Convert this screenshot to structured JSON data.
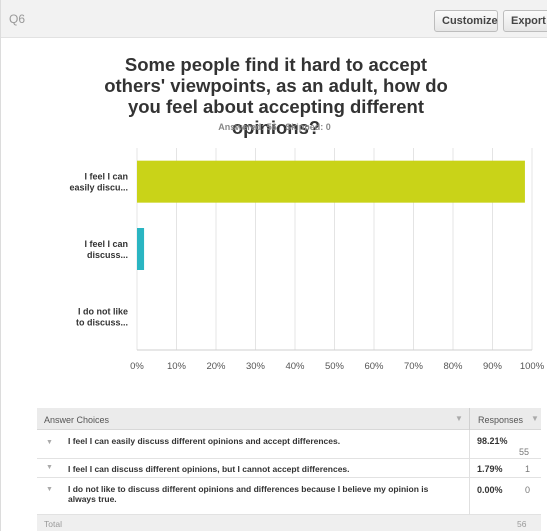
{
  "header": {
    "question_id": "Q6",
    "customize_label": "Customize",
    "export_label": "Export"
  },
  "title": "Some people find it hard to accept others' viewpoints, as an adult, how do you feel about accepting different opinions?",
  "answered": "Answered: 56",
  "skipped": "Skipped: 0",
  "chart_data": {
    "type": "bar",
    "orientation": "horizontal",
    "categories": [
      "I feel I can easily discu...",
      "I feel I can discuss...",
      "I do not like to discuss..."
    ],
    "values": [
      98.21,
      1.79,
      0.0
    ],
    "colors": [
      "#c9d318",
      "#2ab5c2",
      "#999999"
    ],
    "xlim": [
      0,
      100
    ],
    "xticks": [
      "0%",
      "10%",
      "20%",
      "30%",
      "40%",
      "50%",
      "60%",
      "70%",
      "80%",
      "90%",
      "100%"
    ],
    "grid": true
  },
  "table": {
    "col_choices": "Answer Choices",
    "col_responses": "Responses",
    "rows": [
      {
        "text": "I feel I can easily discuss different opinions and accept differences.",
        "percent": "98.21%",
        "count": "55"
      },
      {
        "text": "I feel I can discuss different opinions, but I cannot accept differences.",
        "percent": "1.79%",
        "count": "1"
      },
      {
        "text": "I do not like to discuss different opinions and differences because I believe my opinion is always true.",
        "percent": "0.00%",
        "count": "0"
      }
    ],
    "total_label": "Total",
    "total_value": "56"
  }
}
